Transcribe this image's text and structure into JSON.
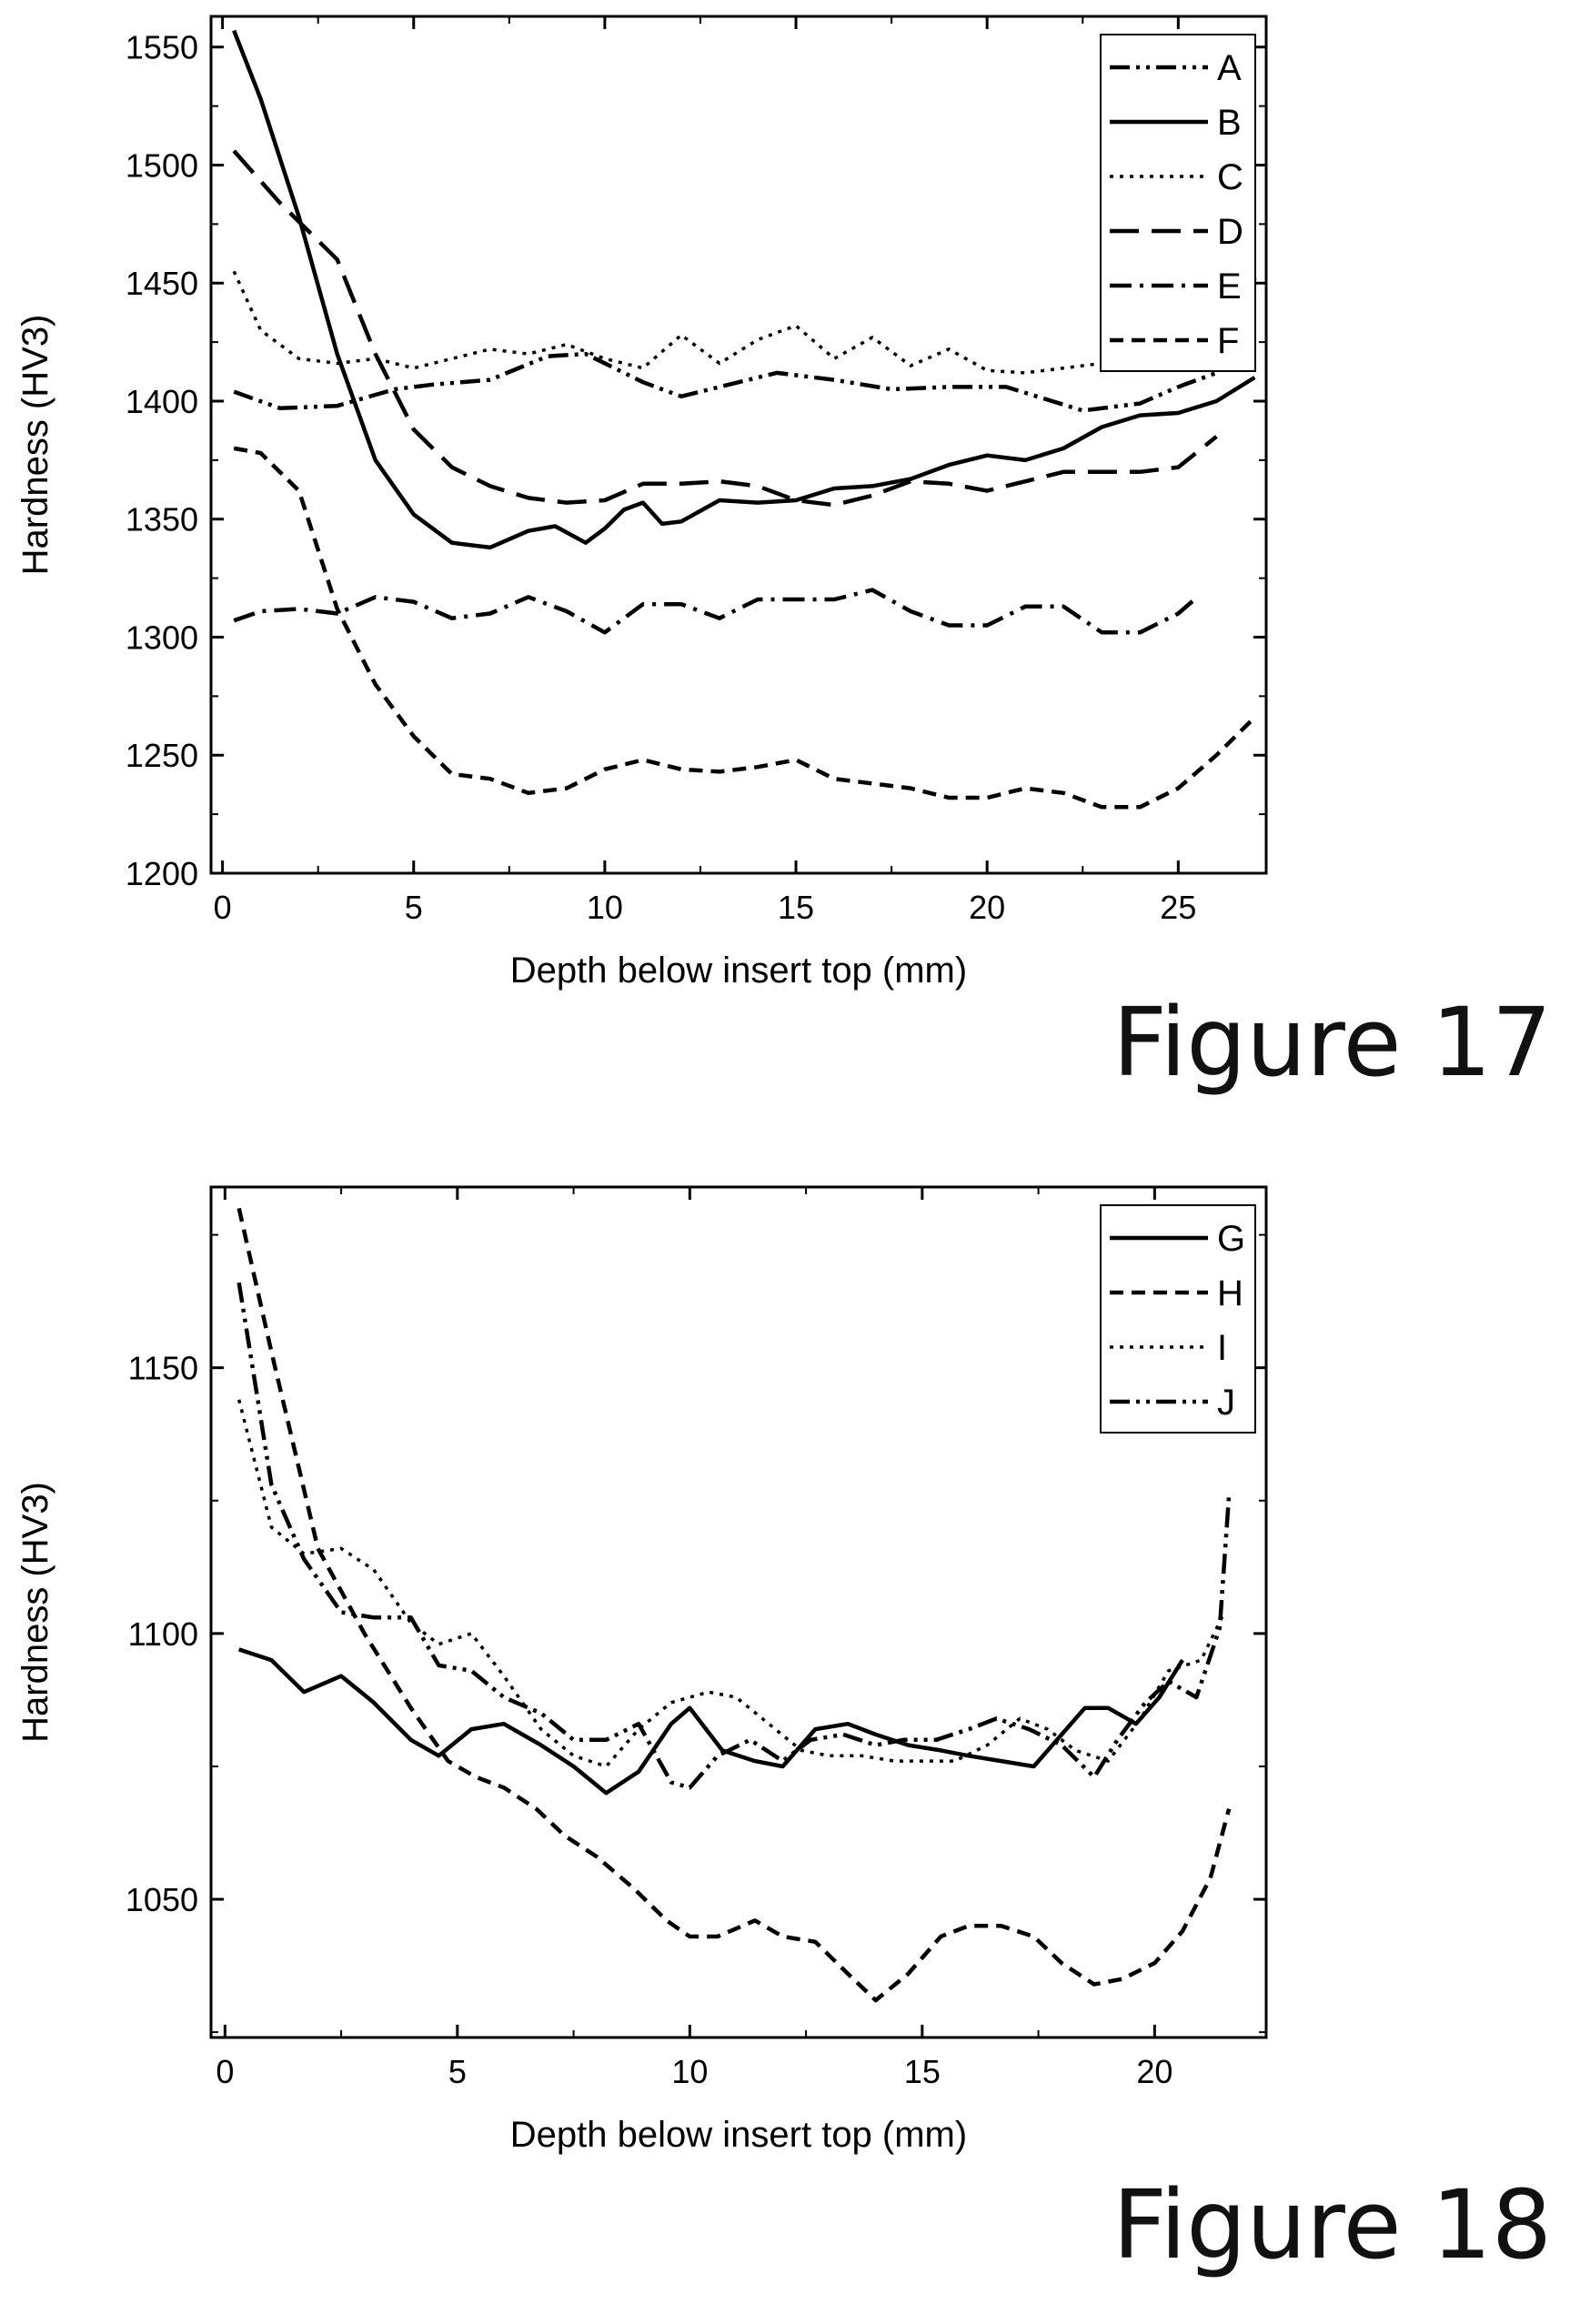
{
  "figures": [
    {
      "label": "Figure 17"
    },
    {
      "label": "Figure 18"
    }
  ],
  "chart_data": [
    {
      "type": "line",
      "xlabel": "Depth below insert top (mm)",
      "ylabel": "Hardness (HV3)",
      "xlim": [
        -0.3,
        27.3
      ],
      "ylim": [
        1200,
        1563
      ],
      "xticks": [
        0,
        5,
        10,
        15,
        20,
        25
      ],
      "yticks": [
        1200,
        1250,
        1300,
        1350,
        1400,
        1450,
        1500,
        1550
      ],
      "legend_position": "top-right",
      "grid": false,
      "series": [
        {
          "name": "A",
          "dash": "dashdotdot",
          "x": [
            0.3,
            1.5,
            3,
            4.5,
            5.5,
            7,
            8.5,
            9.5,
            11,
            12,
            13,
            14.5,
            16,
            17.5,
            19,
            20.5,
            21.5,
            22.5,
            24,
            25,
            26,
            27
          ],
          "y": [
            1404,
            1397,
            1398,
            1405,
            1407,
            1409,
            1419,
            1420,
            1408,
            1402,
            1406,
            1412,
            1409,
            1405,
            1406,
            1406,
            1401,
            1396,
            1399,
            1406,
            1412,
            1452
          ]
        },
        {
          "name": "B",
          "dash": "solid",
          "x": [
            0.3,
            1,
            2,
            3,
            4,
            5,
            6,
            7,
            8,
            8.7,
            9.5,
            10,
            10.5,
            11,
            11.5,
            12,
            13,
            14,
            15,
            16,
            17,
            18,
            19,
            20,
            21,
            22,
            23,
            24,
            25,
            26,
            27
          ],
          "y": [
            1557,
            1528,
            1478,
            1420,
            1375,
            1352,
            1340,
            1338,
            1345,
            1347,
            1340,
            1346,
            1354,
            1357,
            1348,
            1349,
            1358,
            1357,
            1358,
            1363,
            1364,
            1367,
            1373,
            1377,
            1375,
            1380,
            1389,
            1394,
            1395,
            1400,
            1410
          ]
        },
        {
          "name": "C",
          "dash": "dotted",
          "x": [
            0.3,
            1,
            2,
            3,
            4,
            5,
            6,
            7,
            8,
            9,
            10,
            11,
            12,
            13,
            14,
            15,
            16,
            17,
            18,
            19,
            20,
            21,
            22,
            23,
            24,
            25,
            26,
            27
          ],
          "y": [
            1455,
            1430,
            1418,
            1416,
            1418,
            1414,
            1418,
            1422,
            1420,
            1424,
            1418,
            1414,
            1428,
            1416,
            1426,
            1432,
            1418,
            1427,
            1415,
            1422,
            1413,
            1412,
            1414,
            1416,
            1417,
            1418,
            1430,
            1450
          ]
        },
        {
          "name": "D",
          "dash": "longdash",
          "x": [
            0.3,
            1.5,
            3,
            4,
            5,
            6,
            7,
            8,
            9,
            10,
            11,
            12,
            13,
            14,
            15,
            16,
            17,
            18,
            19,
            20,
            21,
            22,
            23,
            24,
            25,
            26
          ],
          "y": [
            1506,
            1484,
            1460,
            1420,
            1388,
            1372,
            1364,
            1359,
            1357,
            1358,
            1365,
            1365,
            1366,
            1364,
            1358,
            1356,
            1360,
            1366,
            1365,
            1362,
            1366,
            1370,
            1370,
            1370,
            1372,
            1385
          ]
        },
        {
          "name": "E",
          "dash": "dashdot",
          "x": [
            0.3,
            1,
            2,
            3,
            4,
            5,
            6,
            7,
            8,
            9,
            10,
            11,
            12,
            13,
            14,
            15,
            16,
            17,
            18,
            19,
            20,
            21,
            22,
            23,
            24,
            25,
            25.5
          ],
          "y": [
            1307,
            1311,
            1312,
            1310,
            1317,
            1315,
            1308,
            1310,
            1317,
            1311,
            1302,
            1314,
            1314,
            1308,
            1316,
            1316,
            1316,
            1320,
            1311,
            1305,
            1305,
            1313,
            1313,
            1302,
            1302,
            1310,
            1317
          ]
        },
        {
          "name": "F",
          "dash": "dashed",
          "x": [
            0.3,
            1,
            2,
            3,
            4,
            5,
            6,
            7,
            8,
            9,
            10,
            11,
            12,
            13,
            14,
            15,
            16,
            17,
            18,
            19,
            20,
            21,
            22,
            23,
            24,
            25,
            26,
            27
          ],
          "y": [
            1380,
            1378,
            1362,
            1312,
            1280,
            1258,
            1242,
            1240,
            1234,
            1236,
            1244,
            1248,
            1244,
            1243,
            1245,
            1248,
            1240,
            1238,
            1236,
            1232,
            1232,
            1236,
            1234,
            1228,
            1228,
            1236,
            1250,
            1266
          ]
        }
      ]
    },
    {
      "type": "line",
      "xlabel": "Depth below insert top (mm)",
      "ylabel": "Hardness (HV3)",
      "xlim": [
        -0.3,
        22.4
      ],
      "ylim": [
        1024,
        1184
      ],
      "xticks": [
        0,
        5,
        10,
        15,
        20
      ],
      "yticks": [
        1050,
        1100,
        1150
      ],
      "legend_position": "top-right",
      "grid": false,
      "series": [
        {
          "name": "G",
          "dash": "solid",
          "x": [
            0.3,
            1,
            1.7,
            2.5,
            3.2,
            4,
            4.6,
            5.3,
            6,
            6.8,
            7.5,
            8.2,
            8.9,
            9.6,
            10,
            10.7,
            11.4,
            12,
            12.7,
            13.4,
            14,
            14.7,
            15.4,
            16,
            16.7,
            17.4,
            18,
            18.5,
            19,
            19.6,
            20.1,
            20.6
          ],
          "y": [
            1097,
            1095,
            1089,
            1092,
            1087,
            1080,
            1077,
            1082,
            1083,
            1079,
            1075,
            1070,
            1074,
            1083,
            1086,
            1078,
            1076,
            1075,
            1082,
            1083,
            1081,
            1079,
            1078,
            1077,
            1076,
            1075,
            1081,
            1086,
            1086,
            1083,
            1088,
            1095
          ]
        },
        {
          "name": "H",
          "dash": "dashed",
          "x": [
            0.3,
            1,
            2,
            3,
            4,
            4.8,
            5.4,
            6,
            6.7,
            7.3,
            8,
            8.8,
            9.5,
            10,
            10.6,
            11.4,
            12,
            12.7,
            13.4,
            14,
            14.7,
            15.4,
            16,
            16.7,
            17.4,
            18,
            18.7,
            19.3,
            20,
            20.6,
            21.2,
            21.6
          ],
          "y": [
            1180,
            1153,
            1116,
            1100,
            1086,
            1076,
            1073,
            1071,
            1067,
            1062,
            1058,
            1052,
            1046,
            1043,
            1043,
            1046,
            1043,
            1042,
            1036,
            1031,
            1036,
            1043,
            1045,
            1045,
            1043,
            1038,
            1034,
            1035,
            1038,
            1044,
            1054,
            1067
          ]
        },
        {
          "name": "I",
          "dash": "dotted",
          "x": [
            0.3,
            1,
            1.7,
            2.5,
            3.2,
            4,
            4.6,
            5.3,
            6,
            6.8,
            7.5,
            8.2,
            8.9,
            9.6,
            10.4,
            11,
            11.7,
            12.4,
            13,
            13.7,
            14.4,
            15,
            15.7,
            16.4,
            17.1,
            17.7,
            18.3,
            19,
            19.7,
            20.3,
            21,
            21.5
          ],
          "y": [
            1144,
            1120,
            1115,
            1116,
            1112,
            1102,
            1098,
            1100,
            1092,
            1082,
            1077,
            1075,
            1082,
            1087,
            1089,
            1088,
            1083,
            1078,
            1077,
            1077,
            1076,
            1076,
            1076,
            1079,
            1084,
            1082,
            1078,
            1076,
            1084,
            1093,
            1095,
            1104
          ]
        },
        {
          "name": "J",
          "dash": "dashdotdot",
          "x": [
            0.3,
            1,
            1.7,
            2.5,
            3.2,
            4,
            4.6,
            5.3,
            6,
            6.8,
            7.5,
            8.2,
            8.9,
            9.6,
            10,
            10.6,
            11.3,
            12,
            12.6,
            13.3,
            14,
            14.6,
            15.3,
            16,
            16.6,
            17.3,
            18,
            18.7,
            19.2,
            19.8,
            20.3,
            20.9,
            21.4,
            21.6
          ],
          "y": [
            1166,
            1128,
            1114,
            1104,
            1103,
            1103,
            1094,
            1093,
            1088,
            1085,
            1080,
            1080,
            1083,
            1072,
            1071,
            1077,
            1080,
            1076,
            1080,
            1081,
            1079,
            1080,
            1080,
            1082,
            1084,
            1082,
            1079,
            1073,
            1080,
            1087,
            1091,
            1088,
            1101,
            1126
          ]
        }
      ]
    }
  ]
}
